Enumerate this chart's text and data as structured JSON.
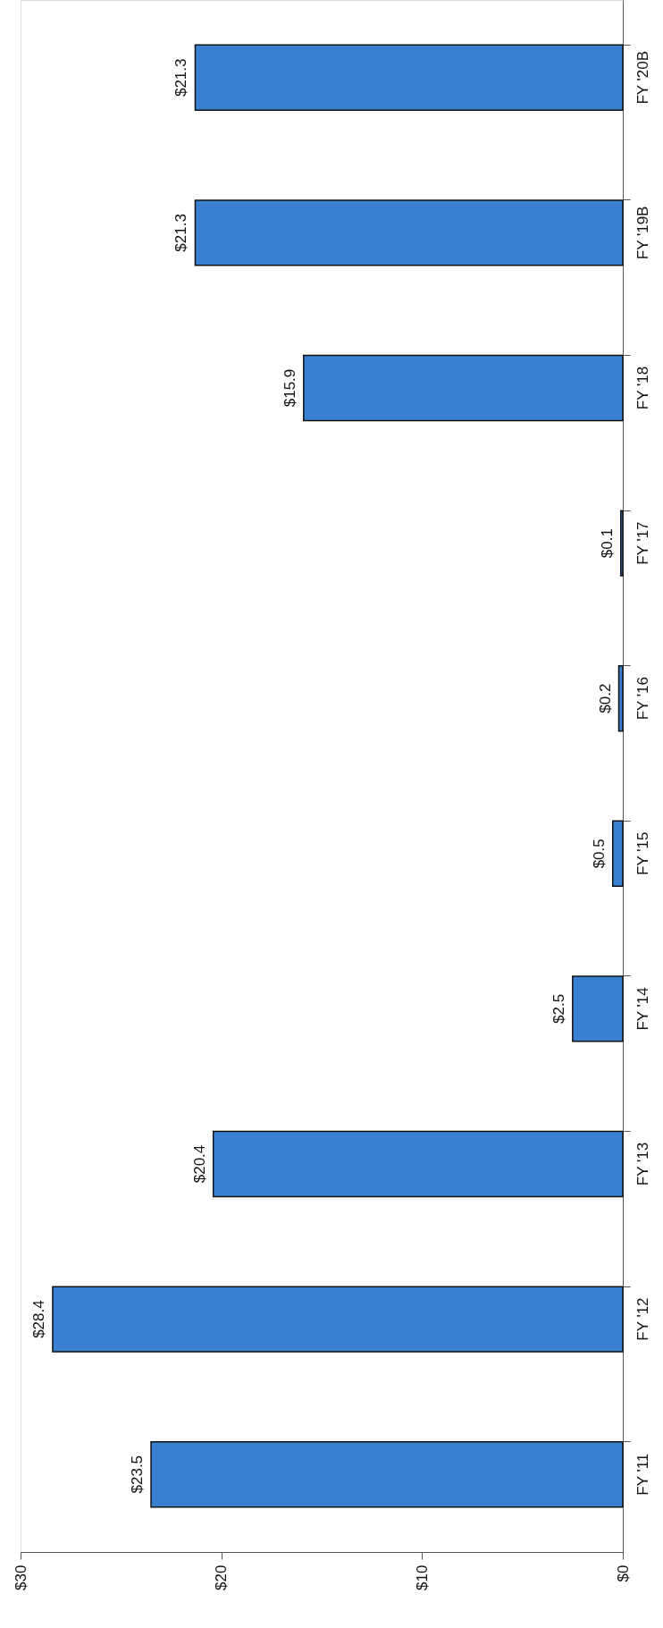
{
  "chart_data": {
    "type": "bar",
    "orientation": "horizontal",
    "categories": [
      "FY '20B",
      "FY '19B",
      "FY '18",
      "FY '17",
      "FY '16",
      "FY '15",
      "FY '14",
      "FY '13",
      "FY '12",
      "FY '11"
    ],
    "values": [
      21.3,
      21.3,
      15.9,
      0.1,
      0.2,
      0.5,
      2.5,
      20.4,
      28.4,
      23.5
    ],
    "value_labels": [
      "$21.3",
      "$21.3",
      "$15.9",
      "$0.1",
      "$0.2",
      "$0.5",
      "$2.5",
      "$20.4",
      "$28.4",
      "$23.5"
    ],
    "color": "#3a80d0",
    "xlim": [
      30,
      0
    ],
    "xticks": [
      {
        "value": 30,
        "label": "$30"
      },
      {
        "value": 20,
        "label": "$20"
      },
      {
        "value": 10,
        "label": "$10"
      },
      {
        "value": 0,
        "label": "$0"
      }
    ]
  }
}
